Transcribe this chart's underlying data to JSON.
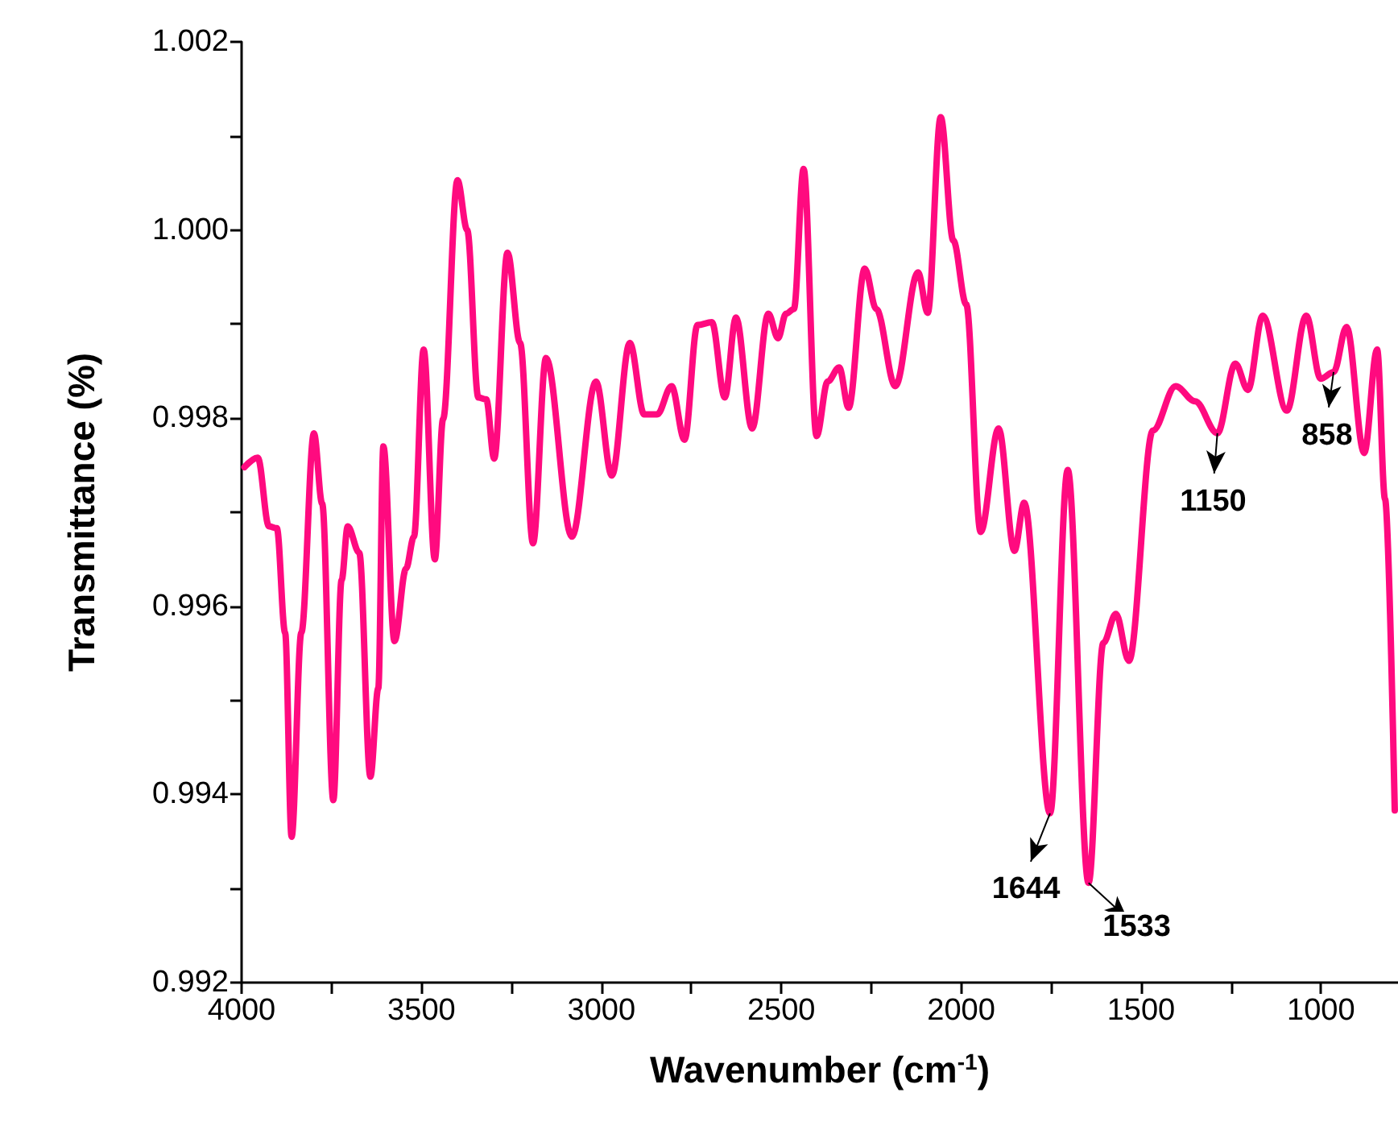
{
  "chart_data": {
    "type": "line",
    "xlabel": "Wavenumber (cm$^{-1}$)",
    "ylabel": "Transmittance (%)",
    "xlim": [
      4000,
      786
    ],
    "ylim": [
      0.992,
      1.002
    ],
    "xticks": [
      4000,
      {
        "value": 3750,
        "label": null
      },
      3500,
      {
        "value": 3250,
        "label": null
      },
      3000,
      {
        "value": 2750,
        "label": null
      },
      2500,
      {
        "value": 2250,
        "label": null
      },
      2000,
      {
        "value": 1750,
        "label": null
      },
      1500,
      {
        "value": 1250,
        "label": null
      },
      1000
    ],
    "yticks": [
      {
        "value": 0.992,
        "label": "0.992"
      },
      {
        "value": 0.993,
        "label": null
      },
      {
        "value": 0.994,
        "label": "0.994"
      },
      {
        "value": 0.995,
        "label": null
      },
      {
        "value": 0.996,
        "label": "0.996"
      },
      {
        "value": 0.997,
        "label": null
      },
      {
        "value": 0.998,
        "label": "0.998"
      },
      {
        "value": 0.999,
        "label": null
      },
      {
        "value": 1.0,
        "label": "1.000"
      },
      {
        "value": 1.001,
        "label": null
      },
      {
        "value": 1.002,
        "label": "1.002"
      }
    ],
    "grid": false,
    "marker": "none",
    "line_style": "solid",
    "x": [
      3992,
      3955,
      3924,
      3902,
      3879,
      3861,
      3834,
      3799,
      3776,
      3745,
      3722,
      3705,
      3673,
      3642,
      3620,
      3606,
      3575,
      3543,
      3521,
      3494,
      3463,
      3440,
      3400,
      3373,
      3342,
      3320,
      3298,
      3261,
      3226,
      3190,
      3154,
      3082,
      3015,
      2971,
      2921,
      2881,
      2845,
      2805,
      2769,
      2733,
      2693,
      2657,
      2626,
      2581,
      2536,
      2509,
      2487,
      2465,
      2438,
      2402,
      2371,
      2339,
      2313,
      2268,
      2236,
      2183,
      2120,
      2093,
      2057,
      2022,
      1986,
      1946,
      1896,
      1852,
      1825,
      1753,
      1704,
      1646,
      1605,
      1570,
      1534,
      1467,
      1404,
      1350,
      1288,
      1238,
      1203,
      1162,
      1095,
      1041,
      1001,
      965,
      929,
      880,
      844,
      822,
      795
    ],
    "series": [
      {
        "color": "#ff0a7f",
        "values": [
          0.99748,
          0.99758,
          0.99685,
          0.99683,
          0.99572,
          0.99355,
          0.99572,
          0.99784,
          0.99709,
          0.99394,
          0.99628,
          0.99685,
          0.99657,
          0.99419,
          0.99513,
          0.9977,
          0.99563,
          0.9964,
          0.99674,
          0.99873,
          0.9965,
          0.99799,
          1.00053,
          1.0,
          0.99822,
          0.9982,
          0.99757,
          0.99976,
          0.9988,
          0.99667,
          0.99864,
          0.99674,
          0.99839,
          0.99739,
          0.9988,
          0.99804,
          0.99804,
          0.99834,
          0.99777,
          0.99899,
          0.99902,
          0.99822,
          0.99907,
          0.99789,
          0.99911,
          0.99885,
          0.99911,
          0.99916,
          1.00065,
          0.99781,
          0.99839,
          0.99854,
          0.99811,
          0.99959,
          0.99916,
          0.99834,
          0.99955,
          0.99912,
          1.0012,
          0.99989,
          0.99921,
          0.99679,
          0.99789,
          0.99659,
          0.9971,
          0.9938,
          0.99745,
          0.99306,
          0.99561,
          0.99592,
          0.99542,
          0.99787,
          0.99834,
          0.99818,
          0.99784,
          0.99858,
          0.9983,
          0.99909,
          0.99808,
          0.99909,
          0.99842,
          0.99849,
          0.99897,
          0.99763,
          0.99873,
          0.99714,
          0.99383
        ]
      }
    ],
    "annotations": [
      {
        "text": "1644",
        "x": 1753,
        "y": 0.9938
      },
      {
        "text": "1533",
        "x": 1646,
        "y": 0.99306
      },
      {
        "text": "1150",
        "x": 1288,
        "y": 0.99784
      },
      {
        "text": "858",
        "x": 965,
        "y": 0.99849
      }
    ]
  }
}
